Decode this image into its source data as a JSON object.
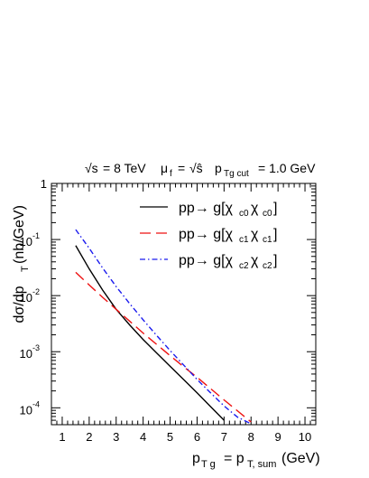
{
  "chart_data": {
    "type": "line",
    "title": {
      "sqrt_s_prefix": "√s",
      "energy": "= 8 TeV",
      "mu": "μ",
      "mu_sub": "f",
      "mu_eq": "=",
      "sqrt_shat": "√ŝ",
      "cut_p": "p",
      "cut_sub": "Tg cut",
      "cut_value": "= 1.0 GeV"
    },
    "ylabel": {
      "main": "dσ/dp",
      "sub": "T",
      "units": "(nb/GeV)"
    },
    "xlabel": {
      "p1": "p",
      "sub1": "T g",
      "mid": "= p",
      "sub2": "T, sum",
      "units": "(GeV)"
    },
    "xlim": [
      0.6,
      10.4
    ],
    "ylim": [
      5e-05,
      1
    ],
    "y_scale": "log",
    "x_ticks": [
      "1",
      "2",
      "3",
      "4",
      "5",
      "6",
      "7",
      "8",
      "9",
      "10"
    ],
    "y_ticks": [
      {
        "base": "1",
        "exp": ""
      },
      {
        "base": "10",
        "exp": "-1"
      },
      {
        "base": "10",
        "exp": "-2"
      },
      {
        "base": "10",
        "exp": "-3"
      },
      {
        "base": "10",
        "exp": "-4"
      }
    ],
    "legend_position": "top-right",
    "series": [
      {
        "name": "pp→ g[χc0 χc0]",
        "legend_main": "pp→ g[χ",
        "legend_sub1": "c0",
        "legend_mid": " χ",
        "legend_sub2": "c0",
        "legend_end": "]",
        "color": "#000000",
        "dash": "solid",
        "x": [
          1.5,
          2.0,
          2.5,
          3.0,
          3.5,
          4.0,
          4.5,
          5.0,
          5.5,
          6.0,
          6.5,
          7.0
        ],
        "y": [
          0.078,
          0.03,
          0.0125,
          0.0057,
          0.003,
          0.00165,
          0.00095,
          0.00055,
          0.00032,
          0.000185,
          0.000105,
          6e-05
        ]
      },
      {
        "name": "pp→ g[χc1 χc1]",
        "legend_main": "pp→ g[χ",
        "legend_sub1": "c1",
        "legend_mid": " χ",
        "legend_sub2": "c1",
        "legend_end": "]",
        "color": "#ee1111",
        "dash": "dashed",
        "x": [
          1.5,
          2.0,
          2.5,
          3.0,
          3.5,
          4.0,
          4.5,
          5.0,
          5.5,
          6.0,
          6.5,
          7.0,
          7.5,
          8.0
        ],
        "y": [
          0.026,
          0.0155,
          0.0093,
          0.0057,
          0.0035,
          0.00215,
          0.00135,
          0.00085,
          0.00054,
          0.00035,
          0.00022,
          0.000138,
          8.8e-05,
          5.6e-05
        ]
      },
      {
        "name": "pp→ g[χc2 χc2]",
        "legend_main": "pp→ g[χ",
        "legend_sub1": "c2",
        "legend_mid": " χ",
        "legend_sub2": "c2",
        "legend_end": "]",
        "color": "#1a1aee",
        "dash": "dashdot",
        "x": [
          1.5,
          2.0,
          2.5,
          3.0,
          3.5,
          4.0,
          4.5,
          5.0,
          5.5,
          6.0,
          6.5,
          7.0,
          7.5,
          8.0
        ],
        "y": [
          0.15,
          0.07,
          0.031,
          0.0145,
          0.0072,
          0.0037,
          0.00195,
          0.00105,
          0.00058,
          0.00032,
          0.000185,
          0.000108,
          6.8e-05,
          5.2e-05
        ]
      }
    ]
  }
}
